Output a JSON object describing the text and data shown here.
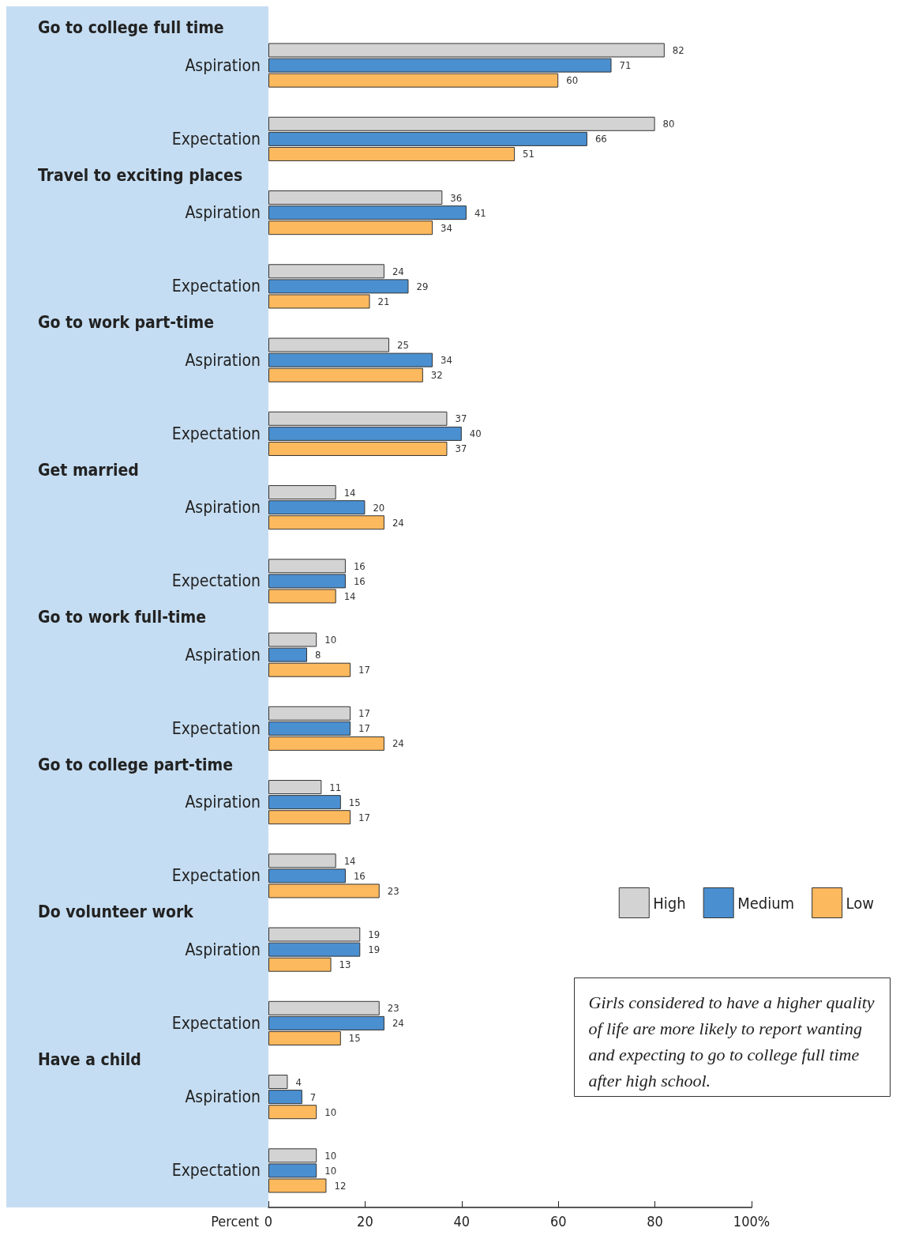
{
  "chart_data": {
    "type": "bar",
    "orientation": "horizontal",
    "xlabel": "Percent",
    "categories": [
      "Aspiration",
      "Expectation",
      "Aspiration",
      "Expectation",
      "Aspiration",
      "Expectation",
      "Aspiration",
      "Expectation",
      "Aspiration",
      "Expectation",
      "Aspiration",
      "Expectation",
      "Aspiration",
      "Expectation",
      "Aspiration",
      "Expectation"
    ],
    "series": [
      {
        "name": "High",
        "color": "#d3d3d3",
        "values": [
          82,
          80,
          36,
          24,
          25,
          37,
          14,
          16,
          10,
          17,
          11,
          14,
          19,
          23,
          4,
          10
        ]
      },
      {
        "name": "Medium",
        "color": "#4a8fd0",
        "values": [
          71,
          66,
          41,
          29,
          34,
          40,
          20,
          16,
          8,
          17,
          15,
          16,
          19,
          24,
          7,
          10
        ]
      },
      {
        "name": "Low",
        "color": "#fdb95e",
        "values": [
          60,
          51,
          34,
          21,
          32,
          37,
          24,
          14,
          17,
          24,
          17,
          23,
          13,
          15,
          10,
          12
        ]
      }
    ],
    "xlim": [
      0,
      100
    ],
    "xticks": [
      0,
      20,
      40,
      60,
      80,
      {
        "value": 100,
        "label": "100%"
      }
    ],
    "data_labels": true,
    "grid": false,
    "legend": "bottom right",
    "annotations": [
      "Go to college full time",
      "Travel to exciting places",
      "Go to work part-time",
      "Get married",
      "Go to work full-time",
      "Go to college part-time",
      "Do volunteer work",
      "Have a child",
      "Girls considered to have a higher quality of life are more likely to report wanting and expecting to go to college full time after high school."
    ]
  }
}
